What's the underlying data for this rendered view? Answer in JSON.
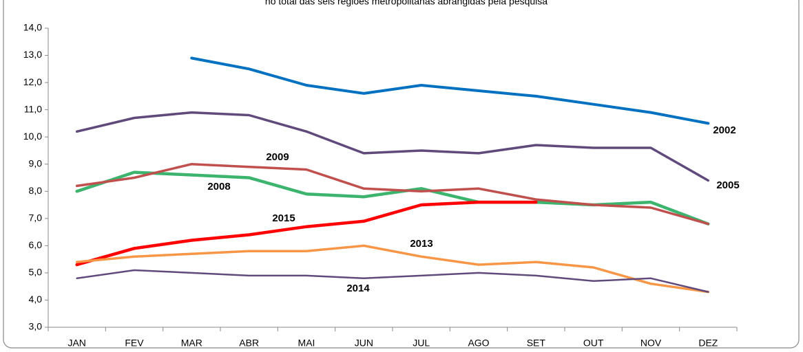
{
  "chart_data": {
    "type": "line",
    "title": "no total das seis regiões metropolitanas abrangidas pela pesquisa",
    "categories": [
      "JAN",
      "FEV",
      "MAR",
      "ABR",
      "MAI",
      "JUN",
      "JUL",
      "AGO",
      "SET",
      "OUT",
      "NOV",
      "DEZ"
    ],
    "ylim": [
      3.0,
      14.0
    ],
    "yticks": [
      {
        "value": 3,
        "label": "3,0"
      },
      {
        "value": 4,
        "label": "4,0"
      },
      {
        "value": 5,
        "label": "5,0"
      },
      {
        "value": 6,
        "label": "6,0"
      },
      {
        "value": 7,
        "label": "7,0"
      },
      {
        "value": 8,
        "label": "8,0"
      },
      {
        "value": 9,
        "label": "9,0"
      },
      {
        "value": 10,
        "label": "10,0"
      },
      {
        "value": 11,
        "label": "11,0"
      },
      {
        "value": 12,
        "label": "12,0"
      },
      {
        "value": 13,
        "label": "13,0"
      },
      {
        "value": 14,
        "label": "14,0"
      }
    ],
    "grid": false,
    "series": [
      {
        "name": "2002",
        "color": "#0070c0",
        "values": [
          null,
          null,
          12.9,
          12.5,
          11.9,
          11.6,
          11.9,
          11.7,
          11.5,
          11.2,
          10.9,
          10.5
        ]
      },
      {
        "name": "2005",
        "color": "#604a7b",
        "values": [
          10.2,
          10.7,
          10.9,
          10.8,
          10.2,
          9.4,
          9.5,
          9.4,
          9.7,
          9.6,
          9.6,
          8.4
        ]
      },
      {
        "name": "2008",
        "color": "#3cb46e",
        "values": [
          8.0,
          8.7,
          8.6,
          8.5,
          7.9,
          7.8,
          8.1,
          7.6,
          7.6,
          7.5,
          7.6,
          6.8
        ]
      },
      {
        "name": "2009",
        "color": "#c0504d",
        "values": [
          8.2,
          8.5,
          9.0,
          8.9,
          8.8,
          8.1,
          8.0,
          8.1,
          7.7,
          7.5,
          7.4,
          6.8
        ]
      },
      {
        "name": "2015",
        "color": "#ff0000",
        "values": [
          5.3,
          5.9,
          6.2,
          6.4,
          6.7,
          6.9,
          7.5,
          7.6,
          7.6,
          null,
          null,
          null
        ]
      },
      {
        "name": "2013",
        "color": "#f79646",
        "values": [
          5.4,
          5.6,
          5.7,
          5.8,
          5.8,
          6.0,
          5.6,
          5.3,
          5.4,
          5.2,
          4.6,
          4.3
        ]
      },
      {
        "name": "2014",
        "color": "#604a7b",
        "values": [
          4.8,
          5.1,
          5.0,
          4.9,
          4.9,
          4.8,
          4.9,
          5.0,
          4.9,
          4.7,
          4.8,
          4.3
        ]
      }
    ]
  }
}
